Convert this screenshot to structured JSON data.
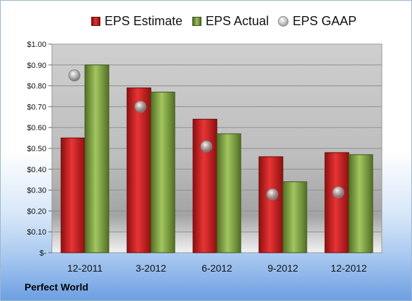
{
  "chart_data": {
    "type": "bar",
    "title": "",
    "xlabel": "",
    "ylabel": "",
    "categories": [
      "12-2011",
      "3-2012",
      "6-2012",
      "9-2012",
      "12-2012"
    ],
    "series": [
      {
        "name": "EPS Estimate",
        "kind": "bar",
        "color": "#c81e1e",
        "values": [
          0.55,
          0.79,
          0.64,
          0.46,
          0.48
        ]
      },
      {
        "name": "EPS Actual",
        "kind": "bar",
        "color": "#7ea03e",
        "values": [
          0.9,
          0.77,
          0.57,
          0.34,
          0.47
        ]
      },
      {
        "name": "EPS GAAP",
        "kind": "marker",
        "color": "#9a9a9a",
        "values": [
          0.85,
          0.7,
          0.51,
          0.28,
          0.29
        ]
      }
    ],
    "ylim": [
      0,
      1.0
    ],
    "yticks": [
      0,
      0.1,
      0.2,
      0.3,
      0.4,
      0.5,
      0.6,
      0.7,
      0.8,
      0.9,
      1.0
    ],
    "ytick_labels": [
      "$-",
      "$0.10",
      "$0.20",
      "$0.30",
      "$0.40",
      "$0.50",
      "$0.60",
      "$0.70",
      "$0.80",
      "$0.90",
      "$1.00"
    ],
    "grid": true,
    "legend_position": "top"
  },
  "footer": {
    "company": "Perfect World"
  }
}
